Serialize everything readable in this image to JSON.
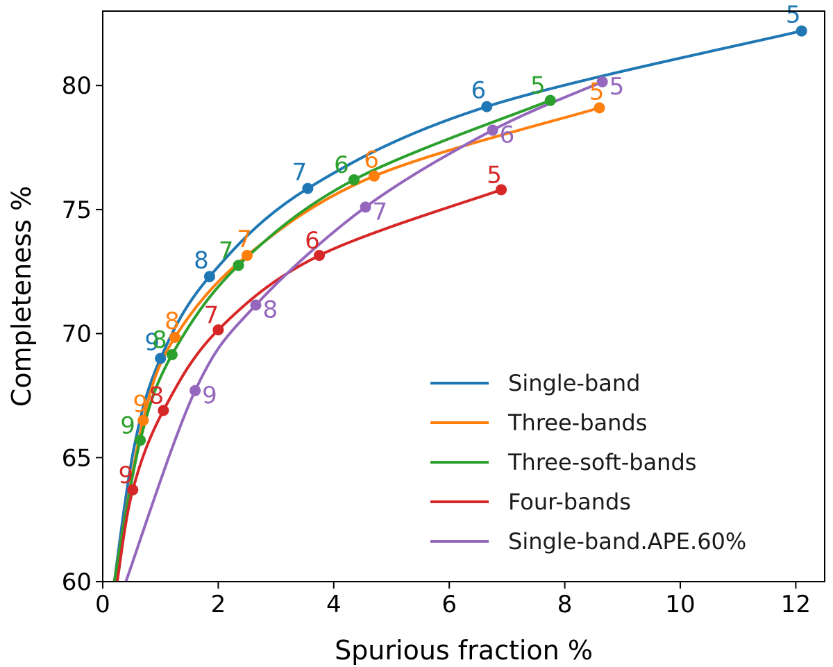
{
  "chart_data": {
    "type": "line",
    "title": "",
    "xlabel": "Spurious fraction %",
    "ylabel": "Completeness %",
    "xlim": [
      0,
      12.5
    ],
    "ylim": [
      60,
      83
    ],
    "x_ticks": [
      0,
      2,
      4,
      6,
      8,
      10,
      12
    ],
    "y_ticks": [
      60,
      65,
      70,
      75,
      80
    ],
    "grid": false,
    "legend_position": "lower-right",
    "series": [
      {
        "name": "Single-band",
        "color": "#1f77b4",
        "points": [
          [
            0.2,
            60.0
          ],
          [
            0.55,
            65.5
          ],
          [
            1.0,
            69.0
          ],
          [
            1.85,
            72.3
          ],
          [
            3.55,
            75.85
          ],
          [
            6.65,
            79.15
          ],
          [
            12.1,
            82.2
          ]
        ],
        "markers": [
          {
            "x": 1.0,
            "y": 69.0,
            "label": "9"
          },
          {
            "x": 1.85,
            "y": 72.3,
            "label": "8"
          },
          {
            "x": 3.55,
            "y": 75.85,
            "label": "7"
          },
          {
            "x": 6.65,
            "y": 79.15,
            "label": "6"
          },
          {
            "x": 12.1,
            "y": 82.2,
            "label": "5"
          }
        ]
      },
      {
        "name": "Three-bands",
        "color": "#ff7f0e",
        "points": [
          [
            0.2,
            60.0
          ],
          [
            0.7,
            66.5
          ],
          [
            1.25,
            69.85
          ],
          [
            2.5,
            73.15
          ],
          [
            4.7,
            76.35
          ],
          [
            8.6,
            79.1
          ]
        ],
        "markers": [
          {
            "x": 0.7,
            "y": 66.5,
            "label": "9"
          },
          {
            "x": 1.25,
            "y": 69.85,
            "label": "8"
          },
          {
            "x": 2.5,
            "y": 73.15,
            "label": "7"
          },
          {
            "x": 4.7,
            "y": 76.35,
            "label": "6"
          },
          {
            "x": 8.6,
            "y": 79.1,
            "label": "5"
          }
        ]
      },
      {
        "name": "Three-soft-bands",
        "color": "#2ca02c",
        "points": [
          [
            0.2,
            60.0
          ],
          [
            0.65,
            65.7
          ],
          [
            1.2,
            69.15
          ],
          [
            2.35,
            72.75
          ],
          [
            4.35,
            76.2
          ],
          [
            7.75,
            79.4
          ]
        ],
        "markers": [
          {
            "x": 0.65,
            "y": 65.7,
            "label": "9"
          },
          {
            "x": 1.2,
            "y": 69.15,
            "label": "8"
          },
          {
            "x": 2.35,
            "y": 72.75,
            "label": "7"
          },
          {
            "x": 4.35,
            "y": 76.2,
            "label": "6"
          },
          {
            "x": 7.75,
            "y": 79.4,
            "label": "5"
          }
        ]
      },
      {
        "name": "Four-bands",
        "color": "#d62728",
        "points": [
          [
            0.25,
            60.0
          ],
          [
            0.52,
            63.7
          ],
          [
            1.05,
            66.9
          ],
          [
            2.0,
            70.15
          ],
          [
            3.75,
            73.15
          ],
          [
            6.9,
            75.8
          ]
        ],
        "markers": [
          {
            "x": 0.52,
            "y": 63.7,
            "label": "9"
          },
          {
            "x": 1.05,
            "y": 66.9,
            "label": "8"
          },
          {
            "x": 2.0,
            "y": 70.15,
            "label": "7"
          },
          {
            "x": 3.75,
            "y": 73.15,
            "label": "6"
          },
          {
            "x": 6.9,
            "y": 75.8,
            "label": "5"
          }
        ]
      },
      {
        "name": "Single-band.APE.60%",
        "color": "#9467bd",
        "points": [
          [
            0.4,
            60.0
          ],
          [
            1.6,
            67.7
          ],
          [
            2.65,
            71.15
          ],
          [
            4.55,
            75.1
          ],
          [
            6.75,
            78.2
          ],
          [
            8.65,
            80.15
          ]
        ],
        "markers": [
          {
            "x": 1.6,
            "y": 67.7,
            "label": "9"
          },
          {
            "x": 2.65,
            "y": 71.15,
            "label": "8"
          },
          {
            "x": 4.55,
            "y": 75.1,
            "label": "7"
          },
          {
            "x": 6.75,
            "y": 78.2,
            "label": "6"
          },
          {
            "x": 8.65,
            "y": 80.15,
            "label": "5"
          }
        ]
      }
    ]
  }
}
